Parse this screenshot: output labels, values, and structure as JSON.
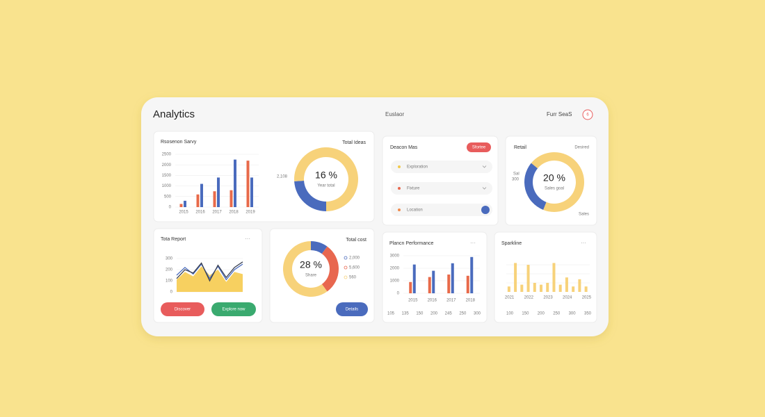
{
  "header": {
    "title": "Analytics",
    "center": "Euslaor",
    "right": "Furr SeaS",
    "badge": "6"
  },
  "widgets": {
    "menu_label": "···",
    "tasks": {
      "title": "Deacon Mas",
      "button": "Sfortee",
      "items": [
        {
          "label": "Exploration",
          "color": "#f2c94c"
        },
        {
          "label": "Fixture",
          "color": "#e8674f"
        },
        {
          "label": "Location",
          "color": "#f08a4b"
        }
      ]
    },
    "buttons": [
      {
        "label": "Discover",
        "color": "#e85c5c"
      },
      {
        "label": "Explore now",
        "color": "#3aaa6f"
      },
      {
        "label": "Details",
        "color": "#4a6bbd"
      }
    ]
  },
  "chart_data": [
    {
      "type": "bar",
      "title": "Rsosenon Sarvy",
      "categories": [
        "2015",
        "2016",
        "2017",
        "2018",
        "2019"
      ],
      "series": [
        {
          "color": "#e86a4a",
          "values": [
            150,
            600,
            750,
            800,
            2200
          ]
        },
        {
          "color": "#4a6bbd",
          "values": [
            300,
            1100,
            1400,
            2250,
            1400
          ]
        }
      ],
      "ylim": [
        0,
        2500
      ],
      "yticks": [
        0,
        500,
        1000,
        1500,
        2000,
        2500
      ],
      "grid": true
    },
    {
      "type": "pie",
      "title": "Total Ideas",
      "center_label": "16 %",
      "subtitle": "Year total",
      "annotations": [
        "2,108"
      ],
      "values": [
        24,
        76
      ],
      "colors": [
        "#4a6bbd",
        "#f7d27a"
      ]
    },
    {
      "type": "pie",
      "title": "Retail",
      "subtitle_right": "Desired",
      "center_label": "20 %",
      "subtitle": "Sales goal",
      "annotations": [
        "Sal",
        "300",
        "Sales"
      ],
      "values": [
        30,
        70
      ],
      "colors": [
        "#4a6bbd",
        "#f7d27a"
      ]
    },
    {
      "type": "line",
      "title": "Tota Report",
      "series": [
        {
          "color": "#f7d060",
          "fill": true,
          "values": [
            110,
            180,
            140,
            230,
            150,
            200,
            90,
            180,
            160
          ]
        },
        {
          "color": "#4a6bbd",
          "fill": false,
          "values": [
            150,
            220,
            160,
            250,
            120,
            230,
            110,
            200,
            250
          ]
        },
        {
          "color": "#3b4152",
          "fill": false,
          "values": [
            120,
            200,
            170,
            260,
            100,
            240,
            130,
            220,
            270
          ]
        }
      ],
      "ylim": [
        0,
        300
      ],
      "yticks": [
        0,
        100,
        200,
        300
      ],
      "grid": true
    },
    {
      "type": "pie",
      "title": "Total cost",
      "center_label": "28 %",
      "subtitle": "Share",
      "categories": [
        "2,000",
        "5,600",
        "560"
      ],
      "values": [
        10,
        30,
        60
      ],
      "colors": [
        "#4a6bbd",
        "#e8674f",
        "#f7d27a"
      ]
    },
    {
      "type": "bar",
      "title": "Plancn Performance",
      "categories": [
        "2015",
        "2016",
        "2017",
        "2018"
      ],
      "series": [
        {
          "color": "#e86a4a",
          "values": [
            900,
            1300,
            1500,
            1400
          ]
        },
        {
          "color": "#4a6bbd",
          "values": [
            2300,
            1800,
            2400,
            2900
          ]
        }
      ],
      "ylim": [
        0,
        3000
      ],
      "yticks": [
        0,
        1000,
        2000,
        3000
      ],
      "grid": true,
      "footer_labels": [
        "105",
        "135",
        "150",
        "200",
        "245",
        "250",
        "300"
      ]
    },
    {
      "type": "bar",
      "title": "Sparkline",
      "categories": [
        "2021",
        null,
        null,
        "2022",
        null,
        null,
        "2023",
        null,
        null,
        "2024",
        null,
        null,
        "2025"
      ],
      "series": [
        {
          "color": "#f7d27a",
          "values": [
            30,
            160,
            40,
            150,
            50,
            40,
            50,
            160,
            40,
            80,
            30,
            70,
            30
          ]
        }
      ],
      "ylim": [
        0,
        200
      ],
      "grid": true,
      "footer_labels": [
        "100",
        "150",
        "200",
        "250",
        "300",
        "350"
      ]
    }
  ]
}
